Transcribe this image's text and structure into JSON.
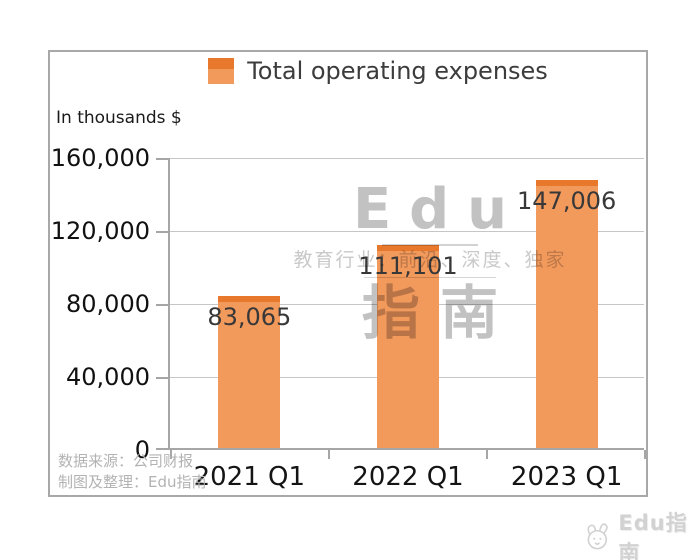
{
  "chart_data": {
    "type": "bar",
    "title": "",
    "categories": [
      "2021 Q1",
      "2022 Q1",
      "2023 Q1"
    ],
    "series": [
      {
        "name": "Total operating expenses",
        "values": [
          83065,
          111101,
          147006
        ]
      }
    ],
    "value_labels": [
      "83,065",
      "111,101",
      "147,006"
    ],
    "xlabel": "",
    "ylabel": "In thousands $",
    "ylim": [
      0,
      160000
    ],
    "ytick_values": [
      160000,
      120000,
      80000,
      40000,
      0
    ],
    "ytick_labels": [
      "160,000",
      "120,000",
      "80,000",
      "40,000",
      "0"
    ],
    "grid": true,
    "legend_position": "top",
    "bar_color": "#F2995C",
    "bar_cap_color": "#E8792C"
  },
  "legend": {
    "label": "Total operating expenses"
  },
  "watermark": {
    "brand": "Edu",
    "tagline": "教育行业：前沿、深度、独家",
    "brand_cn": "指南"
  },
  "footer": {
    "source": "数据来源：公司财报",
    "credit": "制图及整理：Edu指南"
  },
  "page_footer": {
    "logo_text": "Edu指南"
  }
}
